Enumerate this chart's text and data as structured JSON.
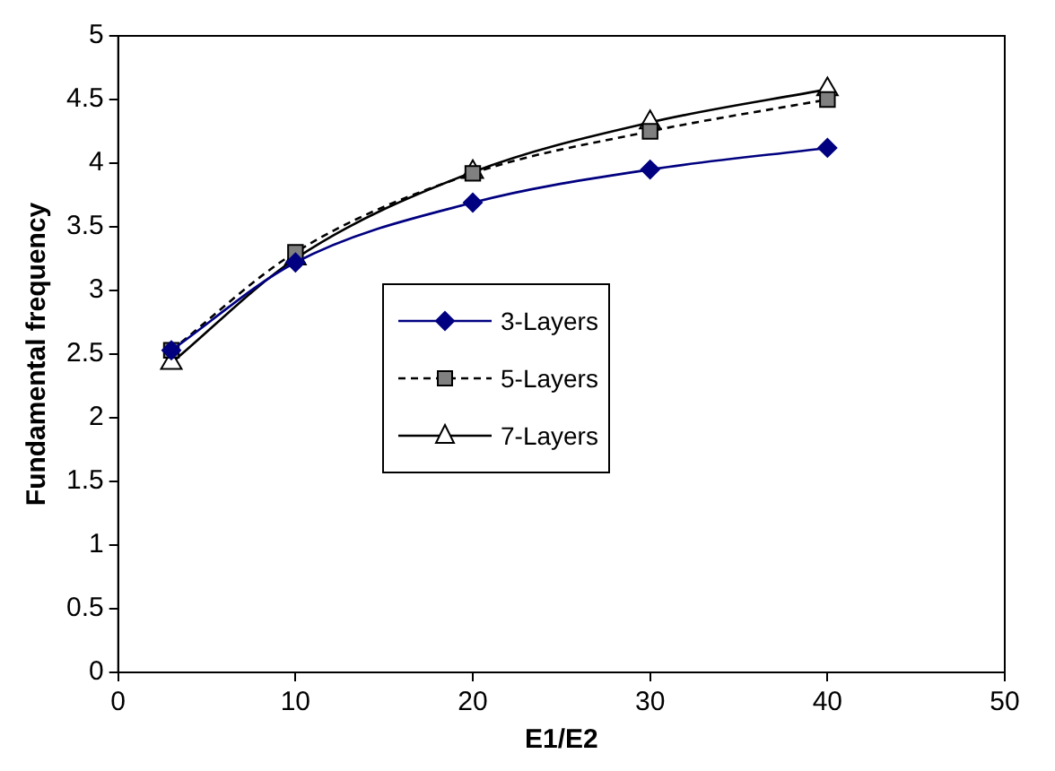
{
  "chart_data": {
    "type": "line",
    "xlabel": "E1/E2",
    "ylabel": "Fundamental frequency",
    "x": [
      3,
      10,
      20,
      30,
      40
    ],
    "series": [
      {
        "name": "3-Layers",
        "color": "#000080",
        "values": [
          2.53,
          3.22,
          3.69,
          3.95,
          4.12
        ],
        "marker": "diamond",
        "line_style": "solid"
      },
      {
        "name": "5-Layers",
        "color": "#000000",
        "values": [
          2.53,
          3.3,
          3.92,
          4.25,
          4.5
        ],
        "marker": "square",
        "line_style": "dashed"
      },
      {
        "name": "7-Layers",
        "color": "#000000",
        "values": [
          2.43,
          3.25,
          3.93,
          4.32,
          4.58
        ],
        "marker": "triangle",
        "line_style": "solid"
      }
    ],
    "xlim": [
      0,
      50
    ],
    "xticks": [
      0,
      10,
      20,
      30,
      40,
      50
    ],
    "ylim": [
      0,
      5
    ],
    "yticks": [
      0,
      0.5,
      1,
      1.5,
      2,
      2.5,
      3,
      3.5,
      4,
      4.5,
      5
    ],
    "grid": false,
    "legend": "left"
  }
}
